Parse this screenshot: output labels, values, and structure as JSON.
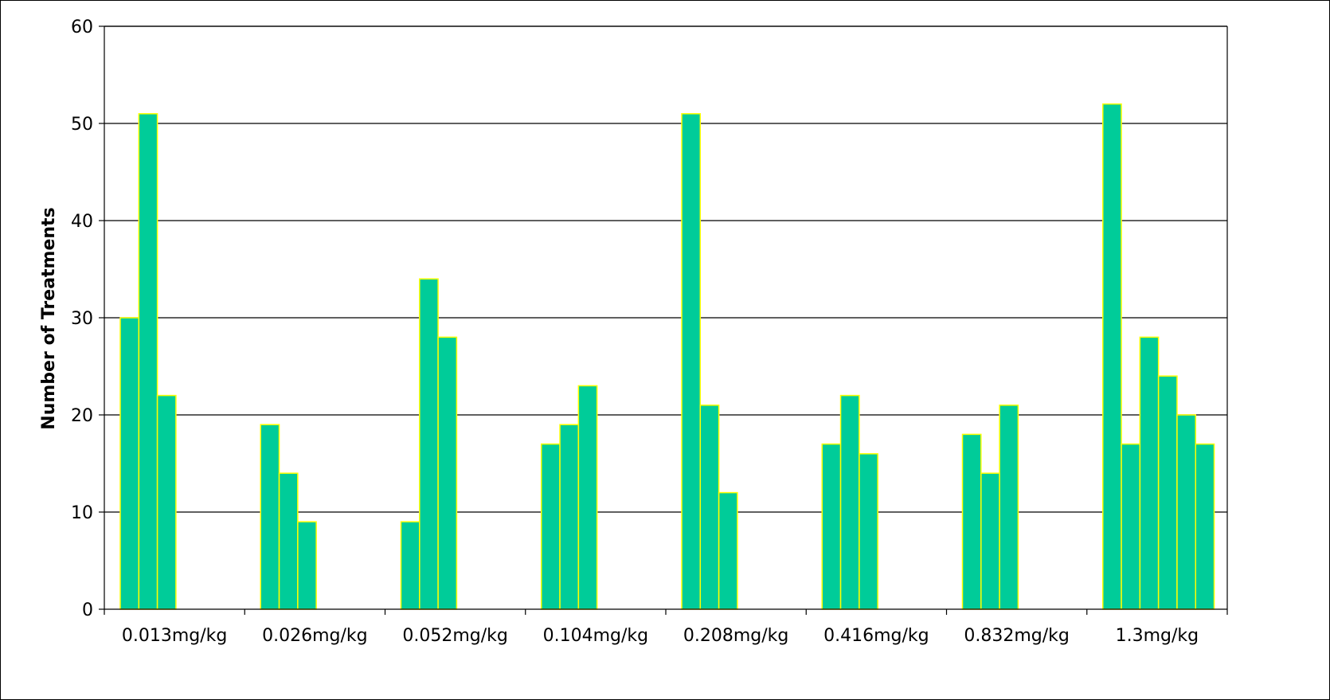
{
  "chart_data": {
    "type": "bar",
    "title": "",
    "xlabel": "",
    "ylabel": "Number of Treatments",
    "ylim": [
      0,
      60
    ],
    "yticks": [
      0,
      10,
      20,
      30,
      40,
      50,
      60
    ],
    "grid": true,
    "bar_color": "#00CC99",
    "bar_edge_color": "#FFFF00",
    "groups": [
      {
        "category": "0.013mg/kg",
        "values": [
          30,
          51,
          22
        ]
      },
      {
        "category": "0.026mg/kg",
        "values": [
          19,
          14,
          9
        ]
      },
      {
        "category": "0.052mg/kg",
        "values": [
          9,
          34,
          28
        ]
      },
      {
        "category": "0.104mg/kg",
        "values": [
          17,
          19,
          23
        ]
      },
      {
        "category": "0.208mg/kg",
        "values": [
          51,
          21,
          12
        ]
      },
      {
        "category": "0.416mg/kg",
        "values": [
          17,
          22,
          16
        ]
      },
      {
        "category": "0.832mg/kg",
        "values": [
          18,
          14,
          21
        ]
      },
      {
        "category": "1.3mg/kg",
        "values": [
          52,
          17,
          28,
          24,
          20,
          17
        ]
      }
    ]
  }
}
